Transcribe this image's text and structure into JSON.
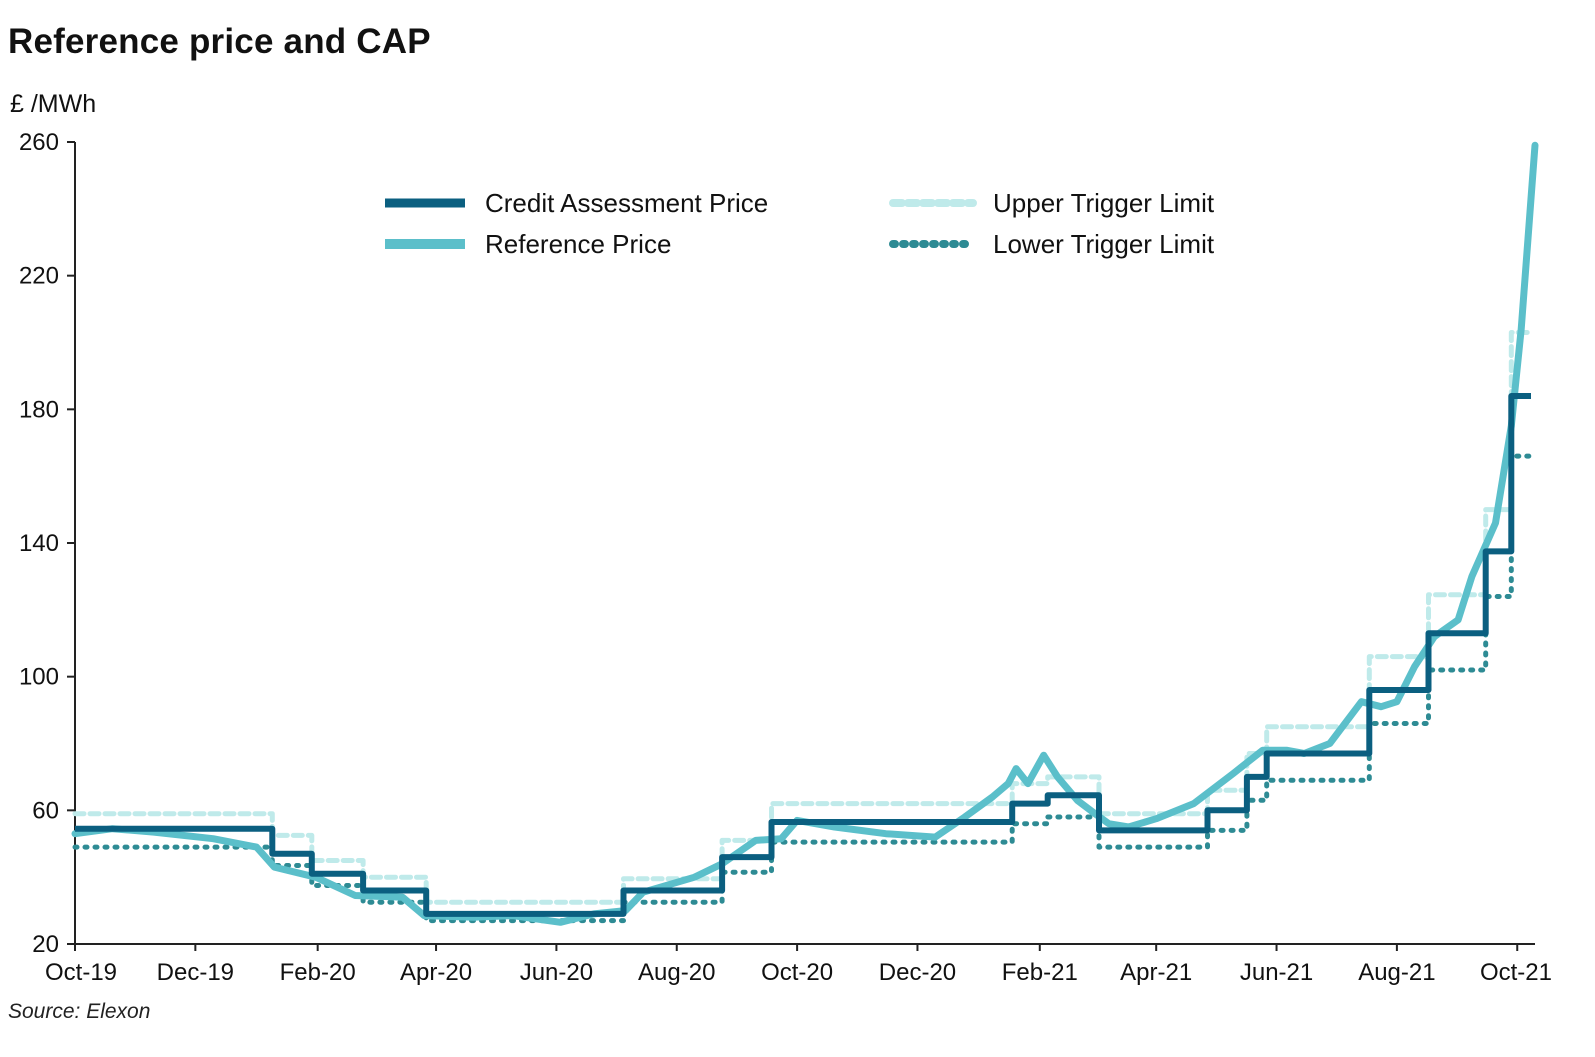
{
  "chart_data": {
    "type": "line",
    "title": "Reference price and CAP",
    "ylabel": "£ /MWh",
    "source": "Source: Elexon",
    "ylim": [
      20,
      260
    ],
    "yticks": [
      20,
      60,
      100,
      140,
      180,
      220,
      260
    ],
    "xlim": [
      "2019-10-01",
      "2021-10-10"
    ],
    "x_tick_labels": [
      {
        "date": "2019-10-01",
        "label": "Oct-19"
      },
      {
        "date": "2019-12-01",
        "label": "Dec-19"
      },
      {
        "date": "2020-02-01",
        "label": "Feb-20"
      },
      {
        "date": "2020-04-01",
        "label": "Apr-20"
      },
      {
        "date": "2020-06-01",
        "label": "Jun-20"
      },
      {
        "date": "2020-08-01",
        "label": "Aug-20"
      },
      {
        "date": "2020-10-01",
        "label": "Oct-20"
      },
      {
        "date": "2020-12-01",
        "label": "Dec-20"
      },
      {
        "date": "2021-02-01",
        "label": "Feb-21"
      },
      {
        "date": "2021-04-01",
        "label": "Apr-21"
      },
      {
        "date": "2021-06-01",
        "label": "Jun-21"
      },
      {
        "date": "2021-08-01",
        "label": "Aug-21"
      },
      {
        "date": "2021-10-01",
        "label": "Oct-21"
      }
    ],
    "grid": false,
    "legend_position": "top-center",
    "series": [
      {
        "name": "Credit Assessment Price",
        "color": "#0b5f80",
        "style": "solid",
        "step": true,
        "points": [
          [
            "2019-10-01",
            54.5
          ],
          [
            "2020-01-09",
            47
          ],
          [
            "2020-01-29",
            41
          ],
          [
            "2020-02-24",
            36
          ],
          [
            "2020-03-27",
            29
          ],
          [
            "2020-07-05",
            36
          ],
          [
            "2020-08-24",
            46
          ],
          [
            "2020-09-18",
            56.5
          ],
          [
            "2021-01-18",
            62
          ],
          [
            "2021-02-05",
            64.5
          ],
          [
            "2021-03-03",
            54
          ],
          [
            "2021-04-27",
            60
          ],
          [
            "2021-05-17",
            70
          ],
          [
            "2021-05-27",
            77
          ],
          [
            "2021-07-18",
            96
          ],
          [
            "2021-08-17",
            113
          ],
          [
            "2021-09-15",
            137.5
          ],
          [
            "2021-09-23",
            137.5
          ],
          [
            "2021-09-28",
            184
          ]
        ]
      },
      {
        "name": "Reference Price",
        "color": "#5bbfca",
        "style": "solid",
        "step": false,
        "points": [
          [
            "2019-10-01",
            53
          ],
          [
            "2019-10-20",
            54.5
          ],
          [
            "2019-11-10",
            53.5
          ],
          [
            "2019-12-10",
            51.5
          ],
          [
            "2020-01-01",
            49
          ],
          [
            "2020-01-10",
            43
          ],
          [
            "2020-01-31",
            40
          ],
          [
            "2020-02-20",
            34.5
          ],
          [
            "2020-03-15",
            34
          ],
          [
            "2020-03-26",
            28.5
          ],
          [
            "2020-04-20",
            28
          ],
          [
            "2020-05-10",
            28.5
          ],
          [
            "2020-06-03",
            26.5
          ],
          [
            "2020-06-20",
            29
          ],
          [
            "2020-07-06",
            30
          ],
          [
            "2020-07-15",
            35.5
          ],
          [
            "2020-08-10",
            40
          ],
          [
            "2020-08-24",
            44
          ],
          [
            "2020-09-10",
            51
          ],
          [
            "2020-09-23",
            51.5
          ],
          [
            "2020-10-01",
            57
          ],
          [
            "2020-10-20",
            55
          ],
          [
            "2020-11-15",
            53
          ],
          [
            "2020-12-10",
            52
          ],
          [
            "2020-12-25",
            58
          ],
          [
            "2021-01-08",
            64
          ],
          [
            "2021-01-16",
            68
          ],
          [
            "2021-01-20",
            72.5
          ],
          [
            "2021-01-26",
            68
          ],
          [
            "2021-02-03",
            76.5
          ],
          [
            "2021-02-10",
            70
          ],
          [
            "2021-02-20",
            63
          ],
          [
            "2021-03-01",
            59
          ],
          [
            "2021-03-08",
            56
          ],
          [
            "2021-03-18",
            55
          ],
          [
            "2021-04-01",
            57.5
          ],
          [
            "2021-04-20",
            62
          ],
          [
            "2021-05-10",
            71
          ],
          [
            "2021-05-25",
            78
          ],
          [
            "2021-06-06",
            78
          ],
          [
            "2021-06-15",
            77
          ],
          [
            "2021-06-28",
            80
          ],
          [
            "2021-07-14",
            92.5
          ],
          [
            "2021-07-24",
            91
          ],
          [
            "2021-08-01",
            92.5
          ],
          [
            "2021-08-10",
            103
          ],
          [
            "2021-08-20",
            112
          ],
          [
            "2021-09-01",
            117
          ],
          [
            "2021-09-08",
            130
          ],
          [
            "2021-09-20",
            146
          ],
          [
            "2021-09-28",
            175
          ],
          [
            "2021-10-03",
            204
          ],
          [
            "2021-10-10",
            259
          ]
        ]
      },
      {
        "name": "Upper Trigger Limit",
        "color": "#bfeaea",
        "style": "dashed",
        "step": true,
        "points": [
          [
            "2019-10-01",
            59
          ],
          [
            "2020-01-09",
            52.5
          ],
          [
            "2020-01-29",
            45
          ],
          [
            "2020-02-24",
            40
          ],
          [
            "2020-03-27",
            32.5
          ],
          [
            "2020-07-05",
            39.5
          ],
          [
            "2020-08-24",
            51
          ],
          [
            "2020-09-18",
            62
          ],
          [
            "2021-01-18",
            68
          ],
          [
            "2021-02-05",
            70
          ],
          [
            "2021-03-03",
            59
          ],
          [
            "2021-04-27",
            66
          ],
          [
            "2021-05-17",
            77
          ],
          [
            "2021-05-27",
            85
          ],
          [
            "2021-07-18",
            106
          ],
          [
            "2021-08-17",
            124.5
          ],
          [
            "2021-09-15",
            150
          ],
          [
            "2021-09-23",
            150
          ],
          [
            "2021-09-28",
            203
          ]
        ]
      },
      {
        "name": "Lower Trigger Limit",
        "color": "#2e8b94",
        "style": "dotted",
        "step": true,
        "points": [
          [
            "2019-10-01",
            49
          ],
          [
            "2020-01-09",
            43.5
          ],
          [
            "2020-01-29",
            37.5
          ],
          [
            "2020-02-24",
            32.5
          ],
          [
            "2020-03-27",
            27
          ],
          [
            "2020-07-05",
            32.5
          ],
          [
            "2020-08-24",
            41.5
          ],
          [
            "2020-09-18",
            50.5
          ],
          [
            "2021-01-18",
            56
          ],
          [
            "2021-02-05",
            58
          ],
          [
            "2021-03-03",
            49
          ],
          [
            "2021-04-27",
            54
          ],
          [
            "2021-05-17",
            63
          ],
          [
            "2021-05-27",
            69
          ],
          [
            "2021-07-18",
            86
          ],
          [
            "2021-08-17",
            102
          ],
          [
            "2021-09-15",
            124
          ],
          [
            "2021-09-23",
            124
          ],
          [
            "2021-09-28",
            166
          ]
        ]
      }
    ]
  }
}
